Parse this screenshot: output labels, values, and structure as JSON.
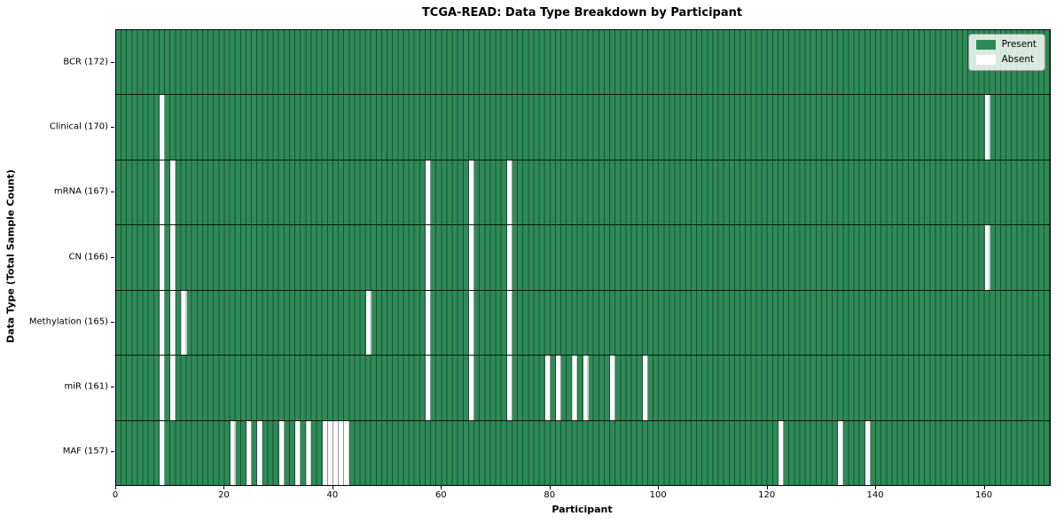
{
  "figure": {
    "title": "TCGA-READ: Data Type Breakdown by Participant",
    "xlabel": "Participant",
    "ylabel": "Data Type (Total Sample Count)"
  },
  "legend": {
    "present_label": "Present",
    "absent_label": "Absent"
  },
  "chart_data": {
    "type": "heatmap",
    "title": "TCGA-READ: Data Type Breakdown by Participant",
    "xlabel": "Participant",
    "ylabel": "Data Type (Total Sample Count)",
    "legend_entries": [
      "Present",
      "Absent"
    ],
    "legend_position": "upper right",
    "grid": true,
    "n_participants": 172,
    "x_range": [
      0,
      172
    ],
    "x_ticks": [
      0,
      20,
      40,
      60,
      80,
      100,
      120,
      140,
      160
    ],
    "colors": {
      "present": "#2e8b57",
      "absent": "#ffffff"
    },
    "rows": [
      {
        "label": "BCR (172)",
        "data_type": "BCR",
        "total_sample_count": 172,
        "absent_participants": []
      },
      {
        "label": "Clinical (170)",
        "data_type": "Clinical",
        "total_sample_count": 170,
        "absent_participants": [
          8,
          160
        ]
      },
      {
        "label": "mRNA (167)",
        "data_type": "mRNA",
        "total_sample_count": 167,
        "absent_participants": [
          8,
          10,
          57,
          65,
          72
        ]
      },
      {
        "label": "CN (166)",
        "data_type": "CN",
        "total_sample_count": 166,
        "absent_participants": [
          8,
          10,
          57,
          65,
          72,
          160
        ]
      },
      {
        "label": "Methylation (165)",
        "data_type": "Methylation",
        "total_sample_count": 165,
        "absent_participants": [
          8,
          10,
          12,
          46,
          57,
          65,
          72
        ]
      },
      {
        "label": "miR (161)",
        "data_type": "miR",
        "total_sample_count": 161,
        "absent_participants": [
          8,
          10,
          57,
          65,
          72,
          79,
          81,
          84,
          86,
          91,
          97
        ]
      },
      {
        "label": "MAF (157)",
        "data_type": "MAF",
        "total_sample_count": 157,
        "absent_participants": [
          8,
          21,
          24,
          26,
          30,
          33,
          35,
          38,
          39,
          40,
          41,
          42,
          122,
          133,
          138
        ]
      }
    ]
  }
}
